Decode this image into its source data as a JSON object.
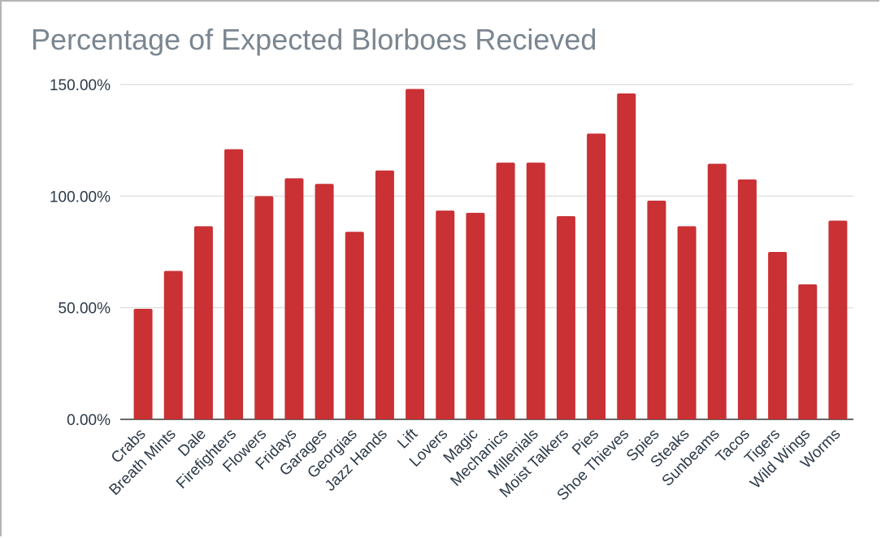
{
  "chart_data": {
    "type": "bar",
    "title": "Percentage of Expected Blorboes Recieved",
    "xlabel": "",
    "ylabel": "",
    "ylim": [
      0,
      150
    ],
    "yticks": [
      0,
      50,
      100,
      150
    ],
    "ytick_labels": [
      "0.00%",
      "50.00%",
      "100.00%",
      "150.00%"
    ],
    "grid": true,
    "bar_color": "#c93134",
    "categories": [
      "Crabs",
      "Breath Mints",
      "Dale",
      "Firefighters",
      "Flowers",
      "Fridays",
      "Garages",
      "Georgias",
      "Jazz Hands",
      "Lift",
      "Lovers",
      "Magic",
      "Mechanics",
      "Millenials",
      "Moist Talkers",
      "Pies",
      "Shoe Thieves",
      "Spies",
      "Steaks",
      "Sunbeams",
      "Tacos",
      "Tigers",
      "Wild Wings",
      "Worms"
    ],
    "values": [
      49.5,
      66.5,
      86.5,
      121,
      100,
      108,
      105.5,
      84,
      111.5,
      148,
      93.5,
      92.5,
      115,
      115,
      91,
      128,
      146,
      98,
      86.5,
      114.5,
      107.5,
      75,
      60.5,
      89
    ]
  }
}
